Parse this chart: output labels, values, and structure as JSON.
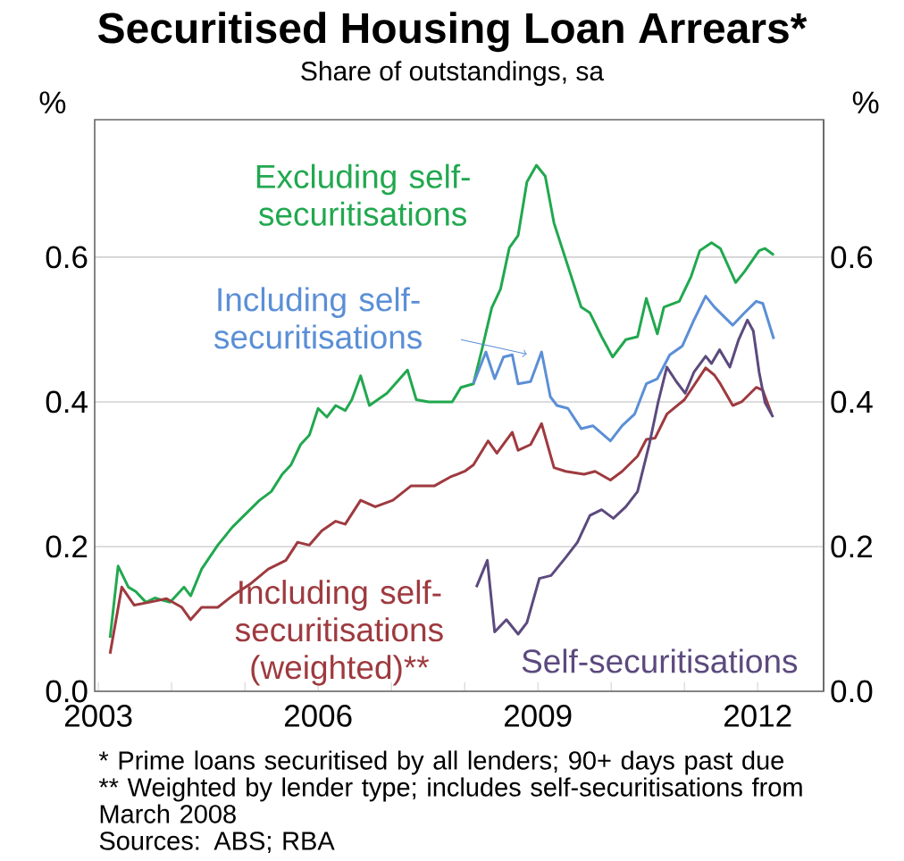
{
  "chart_data": {
    "type": "line",
    "title": "Securitised Housing Loan Arrears*",
    "subtitle": "Share of outstandings, sa",
    "ylabel": "%",
    "y2label": "%",
    "xlim": [
      2002.95,
      2012.9
    ],
    "ylim": [
      0,
      0.79
    ],
    "y2lim": [
      0,
      0.79
    ],
    "xticks": [
      2003,
      {
        "value": 2004,
        "label": null
      },
      {
        "value": 2005,
        "label": null
      },
      2006,
      {
        "value": 2007,
        "label": null
      },
      {
        "value": 2008,
        "label": null
      },
      2009,
      {
        "value": 2010,
        "label": null
      },
      {
        "value": 2011,
        "label": null
      },
      2012
    ],
    "yticks": [
      {
        "value": 0,
        "label": "0.0"
      },
      {
        "value": 0.2,
        "label": "0.2"
      },
      {
        "value": 0.4,
        "label": "0.4"
      },
      {
        "value": 0.6,
        "label": "0.6"
      }
    ],
    "y2ticks": [
      {
        "value": 0,
        "label": "0.0"
      },
      {
        "value": 0.2,
        "label": "0.2"
      },
      {
        "value": 0.4,
        "label": "0.4"
      },
      {
        "value": 0.6,
        "label": "0.6"
      }
    ],
    "grid": "y",
    "legend": false,
    "marker": "none",
    "line_style": "solid",
    "series": [
      {
        "name": "Excluding self-securitisations",
        "color": "#21a84f",
        "x": [
          2003.16,
          2003.27,
          2003.41,
          2003.51,
          2003.65,
          2003.77,
          2003.98,
          2004.17,
          2004.26,
          2004.41,
          2004.63,
          2004.83,
          2004.99,
          2005.2,
          2005.36,
          2005.51,
          2005.63,
          2005.76,
          2005.88,
          2006.0,
          2006.12,
          2006.24,
          2006.37,
          2006.46,
          2006.58,
          2006.7,
          2006.94,
          2007.22,
          2007.34,
          2007.51,
          2007.83,
          2007.95,
          2008.12,
          2008.24,
          2008.37,
          2008.49,
          2008.61,
          2008.73,
          2008.85,
          2008.98,
          2009.1,
          2009.22,
          2009.38,
          2009.59,
          2009.71,
          2009.87,
          2010.02,
          2010.2,
          2010.36,
          2010.48,
          2010.63,
          2010.72,
          2010.93,
          2011.09,
          2011.21,
          2011.37,
          2011.49,
          2011.7,
          2011.82,
          2012.02,
          2012.1,
          2012.22
        ],
        "values": [
          0.074,
          0.173,
          0.144,
          0.138,
          0.123,
          0.129,
          0.123,
          0.144,
          0.132,
          0.169,
          0.202,
          0.227,
          0.243,
          0.264,
          0.276,
          0.3,
          0.313,
          0.341,
          0.354,
          0.391,
          0.379,
          0.395,
          0.388,
          0.403,
          0.436,
          0.395,
          0.412,
          0.444,
          0.403,
          0.4,
          0.4,
          0.42,
          0.425,
          0.474,
          0.53,
          0.556,
          0.613,
          0.63,
          0.704,
          0.727,
          0.712,
          0.647,
          0.597,
          0.531,
          0.523,
          0.49,
          0.462,
          0.486,
          0.49,
          0.543,
          0.494,
          0.531,
          0.539,
          0.573,
          0.609,
          0.62,
          0.612,
          0.565,
          0.58,
          0.609,
          0.612,
          0.603
        ]
      },
      {
        "name": "Including self-securitisations",
        "color": "#5b8fd6",
        "x": [
          2008.12,
          2008.29,
          2008.41,
          2008.53,
          2008.65,
          2008.73,
          2008.9,
          2009.05,
          2009.17,
          2009.26,
          2009.41,
          2009.59,
          2009.75,
          2009.99,
          2010.15,
          2010.32,
          2010.48,
          2010.63,
          2010.8,
          2010.97,
          2011.12,
          2011.29,
          2011.41,
          2011.66,
          2011.82,
          2011.98,
          2012.07,
          2012.22
        ],
        "values": [
          0.425,
          0.469,
          0.432,
          0.462,
          0.465,
          0.425,
          0.428,
          0.469,
          0.407,
          0.395,
          0.391,
          0.363,
          0.367,
          0.346,
          0.367,
          0.383,
          0.425,
          0.432,
          0.465,
          0.477,
          0.511,
          0.546,
          0.531,
          0.506,
          0.523,
          0.539,
          0.536,
          0.487
        ]
      },
      {
        "name": "Including self-securitisations (weighted)**",
        "color": "#9e3a3f",
        "x": [
          2003.16,
          2003.32,
          2003.49,
          2003.69,
          2003.93,
          2004.14,
          2004.26,
          2004.41,
          2004.63,
          2004.83,
          2005.07,
          2005.32,
          2005.56,
          2005.72,
          2005.88,
          2006.05,
          2006.24,
          2006.37,
          2006.58,
          2006.78,
          2007.02,
          2007.27,
          2007.59,
          2007.8,
          2008.0,
          2008.12,
          2008.32,
          2008.44,
          2008.65,
          2008.73,
          2008.9,
          2009.05,
          2009.22,
          2009.38,
          2009.63,
          2009.78,
          2009.99,
          2010.15,
          2010.36,
          2010.48,
          2010.6,
          2010.76,
          2011.0,
          2011.29,
          2011.41,
          2011.49,
          2011.66,
          2011.78,
          2011.98,
          2012.07,
          2012.19
        ],
        "values": [
          0.052,
          0.144,
          0.119,
          0.123,
          0.128,
          0.116,
          0.099,
          0.116,
          0.116,
          0.132,
          0.148,
          0.169,
          0.181,
          0.206,
          0.202,
          0.222,
          0.235,
          0.231,
          0.264,
          0.255,
          0.264,
          0.284,
          0.284,
          0.296,
          0.304,
          0.313,
          0.346,
          0.329,
          0.358,
          0.333,
          0.341,
          0.37,
          0.309,
          0.304,
          0.3,
          0.304,
          0.292,
          0.304,
          0.325,
          0.348,
          0.35,
          0.383,
          0.403,
          0.447,
          0.437,
          0.425,
          0.395,
          0.4,
          0.42,
          0.416,
          0.383
        ]
      },
      {
        "name": "Self-securitisations",
        "color": "#5c4a7e",
        "x": [
          2008.16,
          2008.31,
          2008.41,
          2008.57,
          2008.73,
          2008.85,
          2009.02,
          2009.18,
          2009.38,
          2009.54,
          2009.71,
          2009.87,
          2010.03,
          2010.2,
          2010.36,
          2010.52,
          2010.64,
          2010.76,
          2010.89,
          2011.01,
          2011.13,
          2011.29,
          2011.37,
          2011.48,
          2011.62,
          2011.74,
          2011.86,
          2011.94,
          2012.02,
          2012.1,
          2012.21
        ],
        "values": [
          0.144,
          0.181,
          0.082,
          0.099,
          0.079,
          0.095,
          0.156,
          0.16,
          0.185,
          0.206,
          0.243,
          0.251,
          0.239,
          0.255,
          0.276,
          0.341,
          0.399,
          0.448,
          0.428,
          0.412,
          0.441,
          0.463,
          0.453,
          0.472,
          0.448,
          0.486,
          0.513,
          0.498,
          0.441,
          0.399,
          0.379
        ]
      }
    ],
    "annotations": [
      "*   Prime loans securitised by all lenders; 90+ days past due",
      "** Weighted by lender type; includes self-securitisations from March 2008",
      "Sources: ABS; RBA"
    ]
  }
}
